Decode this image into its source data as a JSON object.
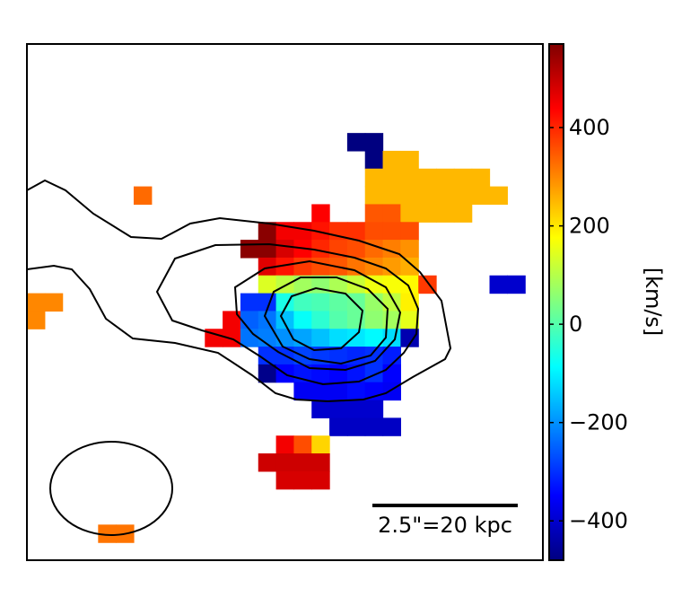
{
  "chart_data": {
    "type": "heatmap",
    "title": "",
    "xlabel": "",
    "ylabel": "",
    "grid": false,
    "pixel_map": {
      "pixel_units": "km/s",
      "grid_size": [
        29,
        29
      ],
      "note_cols_rows": "pixels listed as [col, row, velocity]",
      "pixels": [
        [
          18,
          5,
          -480
        ],
        [
          19,
          5,
          -480
        ],
        [
          19,
          6,
          -480
        ],
        [
          20,
          6,
          250
        ],
        [
          21,
          6,
          250
        ],
        [
          19,
          7,
          250
        ],
        [
          20,
          7,
          250
        ],
        [
          21,
          7,
          250
        ],
        [
          22,
          7,
          250
        ],
        [
          23,
          7,
          250
        ],
        [
          24,
          7,
          250
        ],
        [
          25,
          7,
          250
        ],
        [
          19,
          8,
          250
        ],
        [
          20,
          8,
          250
        ],
        [
          21,
          8,
          250
        ],
        [
          22,
          8,
          250
        ],
        [
          23,
          8,
          250
        ],
        [
          24,
          8,
          250
        ],
        [
          25,
          8,
          250
        ],
        [
          26,
          8,
          250
        ],
        [
          6,
          8,
          330
        ],
        [
          16,
          9,
          440
        ],
        [
          19,
          9,
          350
        ],
        [
          20,
          9,
          350
        ],
        [
          21,
          9,
          250
        ],
        [
          22,
          9,
          250
        ],
        [
          23,
          9,
          250
        ],
        [
          24,
          9,
          250
        ],
        [
          13,
          10,
          560
        ],
        [
          14,
          10,
          450
        ],
        [
          15,
          10,
          450
        ],
        [
          16,
          10,
          420
        ],
        [
          17,
          10,
          390
        ],
        [
          18,
          10,
          390
        ],
        [
          19,
          10,
          360
        ],
        [
          20,
          10,
          360
        ],
        [
          21,
          10,
          360
        ],
        [
          12,
          11,
          560
        ],
        [
          13,
          11,
          560
        ],
        [
          14,
          11,
          480
        ],
        [
          15,
          11,
          440
        ],
        [
          16,
          11,
          400
        ],
        [
          17,
          11,
          370
        ],
        [
          18,
          11,
          360
        ],
        [
          19,
          11,
          330
        ],
        [
          20,
          11,
          310
        ],
        [
          21,
          11,
          290
        ],
        [
          13,
          12,
          470
        ],
        [
          14,
          12,
          420
        ],
        [
          15,
          12,
          380
        ],
        [
          16,
          12,
          360
        ],
        [
          17,
          12,
          350
        ],
        [
          18,
          12,
          320
        ],
        [
          19,
          12,
          300
        ],
        [
          20,
          12,
          280
        ],
        [
          21,
          12,
          260
        ],
        [
          13,
          13,
          140
        ],
        [
          14,
          13,
          110
        ],
        [
          15,
          13,
          80
        ],
        [
          16,
          13,
          60
        ],
        [
          17,
          13,
          90
        ],
        [
          18,
          13,
          120
        ],
        [
          19,
          13,
          160
        ],
        [
          20,
          13,
          170
        ],
        [
          21,
          13,
          180
        ],
        [
          22,
          13,
          380
        ],
        [
          26,
          13,
          -400
        ],
        [
          27,
          13,
          -400
        ],
        [
          12,
          14,
          -300
        ],
        [
          13,
          14,
          -300
        ],
        [
          14,
          14,
          -60
        ],
        [
          15,
          14,
          -20
        ],
        [
          16,
          14,
          -10
        ],
        [
          17,
          14,
          10
        ],
        [
          18,
          14,
          20
        ],
        [
          19,
          14,
          70
        ],
        [
          20,
          14,
          110
        ],
        [
          21,
          14,
          190
        ],
        [
          0,
          14,
          300
        ],
        [
          1,
          14,
          300
        ],
        [
          0,
          15,
          300
        ],
        [
          11,
          15,
          450
        ],
        [
          12,
          15,
          -250
        ],
        [
          13,
          15,
          -230
        ],
        [
          14,
          15,
          -150
        ],
        [
          15,
          15,
          -80
        ],
        [
          16,
          15,
          -40
        ],
        [
          17,
          15,
          0
        ],
        [
          18,
          15,
          20
        ],
        [
          19,
          15,
          60
        ],
        [
          20,
          15,
          80
        ],
        [
          21,
          15,
          150
        ],
        [
          10,
          16,
          450
        ],
        [
          11,
          16,
          450
        ],
        [
          12,
          16,
          -230
        ],
        [
          13,
          16,
          -220
        ],
        [
          14,
          16,
          -200
        ],
        [
          15,
          16,
          -180
        ],
        [
          16,
          16,
          -150
        ],
        [
          17,
          16,
          -120
        ],
        [
          18,
          16,
          -110
        ],
        [
          19,
          16,
          -90
        ],
        [
          20,
          16,
          -120
        ],
        [
          21,
          16,
          -430
        ],
        [
          13,
          17,
          -300
        ],
        [
          14,
          17,
          -300
        ],
        [
          15,
          17,
          -280
        ],
        [
          16,
          17,
          -290
        ],
        [
          17,
          17,
          -300
        ],
        [
          18,
          17,
          -310
        ],
        [
          19,
          17,
          -300
        ],
        [
          20,
          17,
          -320
        ],
        [
          13,
          18,
          -470
        ],
        [
          14,
          18,
          -350
        ],
        [
          15,
          18,
          -330
        ],
        [
          16,
          18,
          -340
        ],
        [
          17,
          18,
          -350
        ],
        [
          18,
          18,
          -330
        ],
        [
          19,
          18,
          -300
        ],
        [
          20,
          18,
          -350
        ],
        [
          15,
          19,
          -360
        ],
        [
          16,
          19,
          -360
        ],
        [
          17,
          19,
          -360
        ],
        [
          18,
          19,
          -340
        ],
        [
          19,
          19,
          -350
        ],
        [
          20,
          19,
          -360
        ],
        [
          16,
          20,
          -400
        ],
        [
          17,
          20,
          -400
        ],
        [
          18,
          20,
          -400
        ],
        [
          19,
          20,
          -400
        ],
        [
          17,
          21,
          -410
        ],
        [
          18,
          21,
          -410
        ],
        [
          19,
          21,
          -410
        ],
        [
          20,
          21,
          -410
        ],
        [
          14,
          22,
          450
        ],
        [
          15,
          22,
          360
        ],
        [
          16,
          22,
          220
        ],
        [
          13,
          23,
          490
        ],
        [
          14,
          23,
          490
        ],
        [
          15,
          23,
          490
        ],
        [
          16,
          23,
          490
        ],
        [
          14,
          24,
          480
        ],
        [
          15,
          24,
          480
        ],
        [
          16,
          24,
          480
        ],
        [
          4,
          27,
          320
        ],
        [
          5,
          27,
          320
        ]
      ]
    },
    "colorbar": {
      "label": "[km/s]",
      "range": [
        -480,
        570
      ],
      "ticks": [
        400,
        200,
        0,
        -200,
        -400
      ],
      "tick_labels": [
        "400",
        "200",
        "0",
        "−200",
        "−400"
      ]
    },
    "scale_bar": {
      "label": "2.5\"=20 kpc"
    },
    "colors": {
      "jet": [
        "#000080",
        "#0000ff",
        "#0080ff",
        "#00ffff",
        "#80ff80",
        "#ffff00",
        "#ff8000",
        "#ff0000",
        "#800000"
      ]
    }
  }
}
